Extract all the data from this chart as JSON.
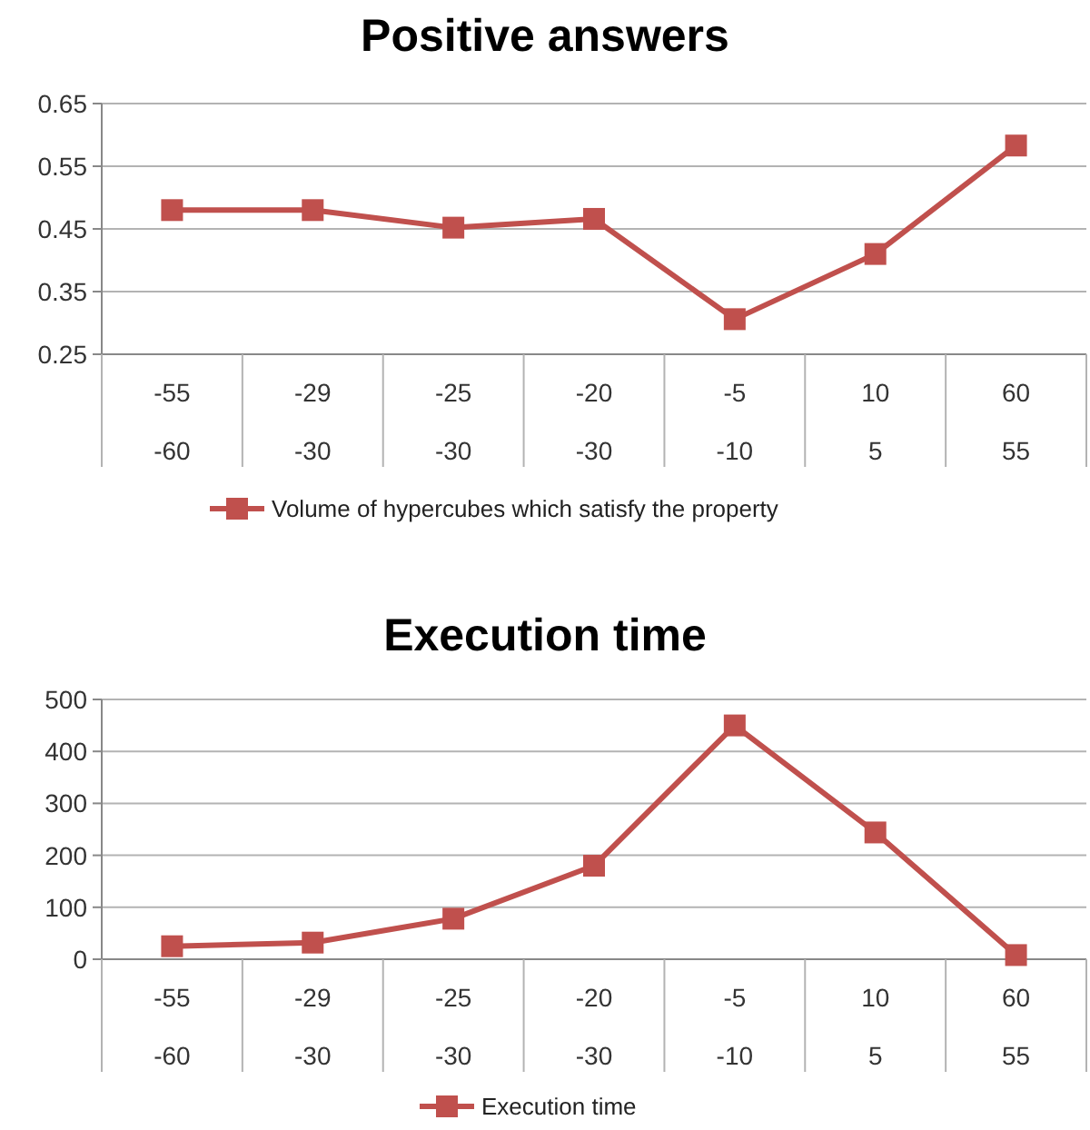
{
  "chart_data": [
    {
      "type": "line",
      "title": "Positive answers",
      "categories": [
        "-55\n-60",
        "-29\n-30",
        "-25\n-30",
        "-20\n-30",
        "-5\n-10",
        "10\n5",
        "60\n55"
      ],
      "series": [
        {
          "name": "Volume of hypercubes which satisfy the property",
          "color": "#c0504d",
          "values": [
            0.48,
            0.48,
            0.452,
            0.466,
            0.306,
            0.41,
            0.583
          ]
        }
      ],
      "ylim": [
        0.25,
        0.65
      ],
      "yticks": [
        0.25,
        0.35,
        0.45,
        0.55,
        0.65
      ],
      "grid": "y",
      "legend": "bottom",
      "marker": "square",
      "line_style": "solid"
    },
    {
      "type": "line",
      "title": "Execution time",
      "categories": [
        "-55\n-60",
        "-29\n-30",
        "-25\n-30",
        "-20\n-30",
        "-5\n-10",
        "10\n5",
        "60\n55"
      ],
      "series": [
        {
          "name": "Execution time",
          "color": "#c0504d",
          "values": [
            25,
            32,
            78,
            180,
            450,
            244,
            8
          ]
        }
      ],
      "ylim": [
        0,
        500
      ],
      "yticks": [
        0,
        100,
        200,
        300,
        400,
        500
      ],
      "grid": "y",
      "legend": "bottom",
      "marker": "square",
      "line_style": "solid"
    }
  ]
}
